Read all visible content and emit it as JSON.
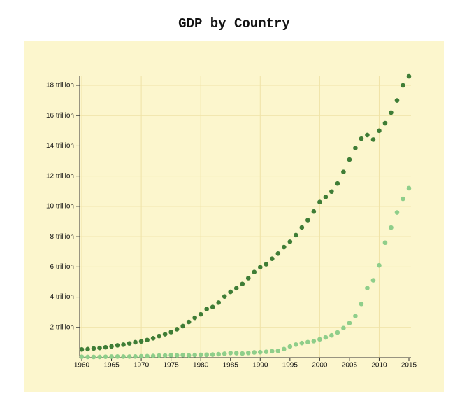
{
  "chart_data": {
    "type": "scatter",
    "title": "GDP by Country",
    "x": [
      1960,
      1961,
      1962,
      1963,
      1964,
      1965,
      1966,
      1967,
      1968,
      1969,
      1970,
      1971,
      1972,
      1973,
      1974,
      1975,
      1976,
      1977,
      1978,
      1979,
      1980,
      1981,
      1982,
      1983,
      1984,
      1985,
      1986,
      1987,
      1988,
      1989,
      1990,
      1991,
      1992,
      1993,
      1994,
      1995,
      1996,
      1997,
      1998,
      1999,
      2000,
      2001,
      2002,
      2003,
      2004,
      2005,
      2006,
      2007,
      2008,
      2009,
      2010,
      2011,
      2012,
      2013,
      2014,
      2015
    ],
    "series": [
      {
        "color": "#3f7d36",
        "values": [
          0.543,
          0.563,
          0.605,
          0.638,
          0.686,
          0.744,
          0.815,
          0.862,
          0.943,
          1.019,
          1.075,
          1.168,
          1.282,
          1.429,
          1.549,
          1.689,
          1.878,
          2.086,
          2.357,
          2.632,
          2.863,
          3.211,
          3.345,
          3.638,
          4.041,
          4.347,
          4.59,
          4.87,
          5.253,
          5.658,
          5.98,
          6.174,
          6.539,
          6.879,
          7.309,
          7.664,
          8.1,
          8.609,
          9.089,
          9.661,
          10.285,
          10.622,
          10.978,
          11.511,
          12.275,
          13.094,
          13.856,
          14.478,
          14.719,
          14.419,
          15.0,
          15.5,
          16.2,
          17.0,
          18.0,
          18.6
        ]
      },
      {
        "color": "#8fce8a",
        "values": [
          0.06,
          0.05,
          0.047,
          0.05,
          0.059,
          0.07,
          0.076,
          0.073,
          0.071,
          0.079,
          0.093,
          0.1,
          0.114,
          0.139,
          0.144,
          0.163,
          0.154,
          0.175,
          0.149,
          0.178,
          0.191,
          0.196,
          0.205,
          0.231,
          0.26,
          0.31,
          0.3,
          0.273,
          0.312,
          0.348,
          0.361,
          0.383,
          0.427,
          0.445,
          0.564,
          0.734,
          0.864,
          0.962,
          1.029,
          1.094,
          1.211,
          1.339,
          1.471,
          1.661,
          1.955,
          2.286,
          2.752,
          3.552,
          4.598,
          5.11,
          6.1,
          7.6,
          8.6,
          9.6,
          10.5,
          11.2
        ]
      }
    ],
    "xlim": [
      1960,
      2015
    ],
    "xticks": [
      1960,
      1965,
      1970,
      1975,
      1980,
      1985,
      1990,
      1995,
      2000,
      2005,
      2010,
      2015
    ],
    "ylim": [
      0,
      18
    ],
    "yticks": [
      {
        "value": 2,
        "label": "2 trillion"
      },
      {
        "value": 4,
        "label": "4 trillion"
      },
      {
        "value": 6,
        "label": "6 trillion"
      },
      {
        "value": 8,
        "label": "8 trillion"
      },
      {
        "value": 10,
        "label": "10 trillion"
      },
      {
        "value": 12,
        "label": "12 trillion"
      },
      {
        "value": 14,
        "label": "14 trillion"
      },
      {
        "value": 16,
        "label": "16 trillion"
      },
      {
        "value": 18,
        "label": "18 trillion"
      }
    ],
    "grid": true
  }
}
